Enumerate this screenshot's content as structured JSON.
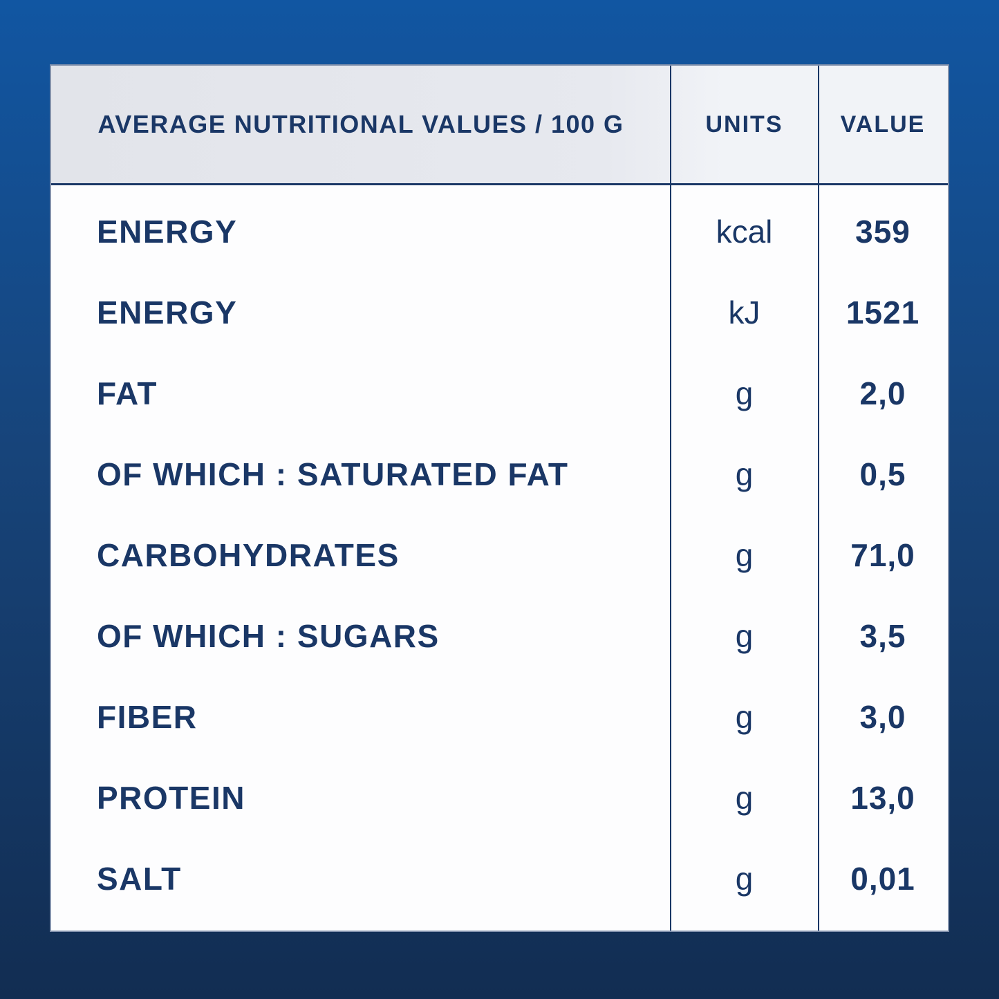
{
  "table": {
    "header": {
      "product_col": "AVERAGE NUTRITIONAL VALUES / 100 G",
      "units_col": "UNITS",
      "value_col": "VALUE"
    },
    "rows": [
      {
        "label": "ENERGY",
        "unit": "kcal",
        "value": "359"
      },
      {
        "label": "ENERGY",
        "unit": "kJ",
        "value": "1521"
      },
      {
        "label": "FAT",
        "unit": "g",
        "value": "2,0"
      },
      {
        "label": "OF WHICH : SATURATED FAT",
        "unit": "g",
        "value": "0,5"
      },
      {
        "label": "CARBOHYDRATES",
        "unit": "g",
        "value": "71,0"
      },
      {
        "label": "OF WHICH : SUGARS",
        "unit": "g",
        "value": "3,5"
      },
      {
        "label": "FIBER",
        "unit": "g",
        "value": "3,0"
      },
      {
        "label": "PROTEIN",
        "unit": "g",
        "value": "13,0"
      },
      {
        "label": "SALT",
        "unit": "g",
        "value": "0,01"
      }
    ]
  },
  "colors": {
    "bg-top": "#1156a2",
    "bg-mid": "#17447a",
    "bg-bottom": "#122d52",
    "header-left": "#e2e4ea",
    "header-right": "#f1f3f7",
    "body-bg": "#fdfdfe",
    "line": "#1a3766",
    "text": "#1a3766"
  }
}
